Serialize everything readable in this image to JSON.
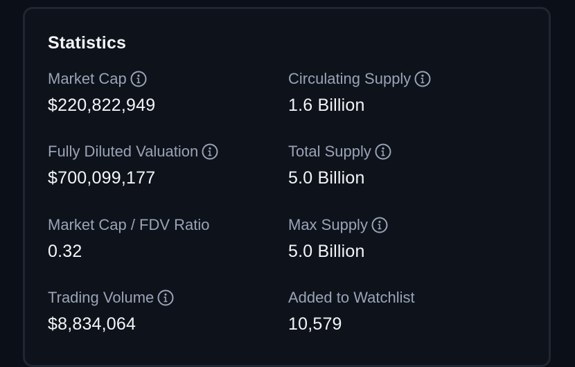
{
  "statistics": {
    "title": "Statistics",
    "market_cap": {
      "label": "Market Cap",
      "value": "$220,822,949",
      "info_icon": "info-icon"
    },
    "circulating_supply": {
      "label": "Circulating Supply",
      "value": "1.6 Billion",
      "info_icon": "info-icon"
    },
    "fully_diluted_valuation": {
      "label": "Fully Diluted Valuation",
      "value": "$700,099,177",
      "info_icon": "info-icon"
    },
    "total_supply": {
      "label": "Total Supply",
      "value": "5.0 Billion",
      "info_icon": "info-icon"
    },
    "market_cap_fdv_ratio": {
      "label": "Market Cap / FDV Ratio",
      "value": "0.32"
    },
    "max_supply": {
      "label": "Max Supply",
      "value": "5.0 Billion",
      "info_icon": "info-icon"
    },
    "trading_volume": {
      "label": "Trading Volume",
      "value": "$8,834,064",
      "info_icon": "info-icon"
    },
    "added_to_watchlist": {
      "label": "Added to Watchlist",
      "value": "10,579"
    }
  },
  "colors": {
    "background": "#0b0f17",
    "card_background": "#0e121a",
    "card_border": "#1f2732",
    "label": "#9aa4b8",
    "value": "#f3f5f8"
  }
}
